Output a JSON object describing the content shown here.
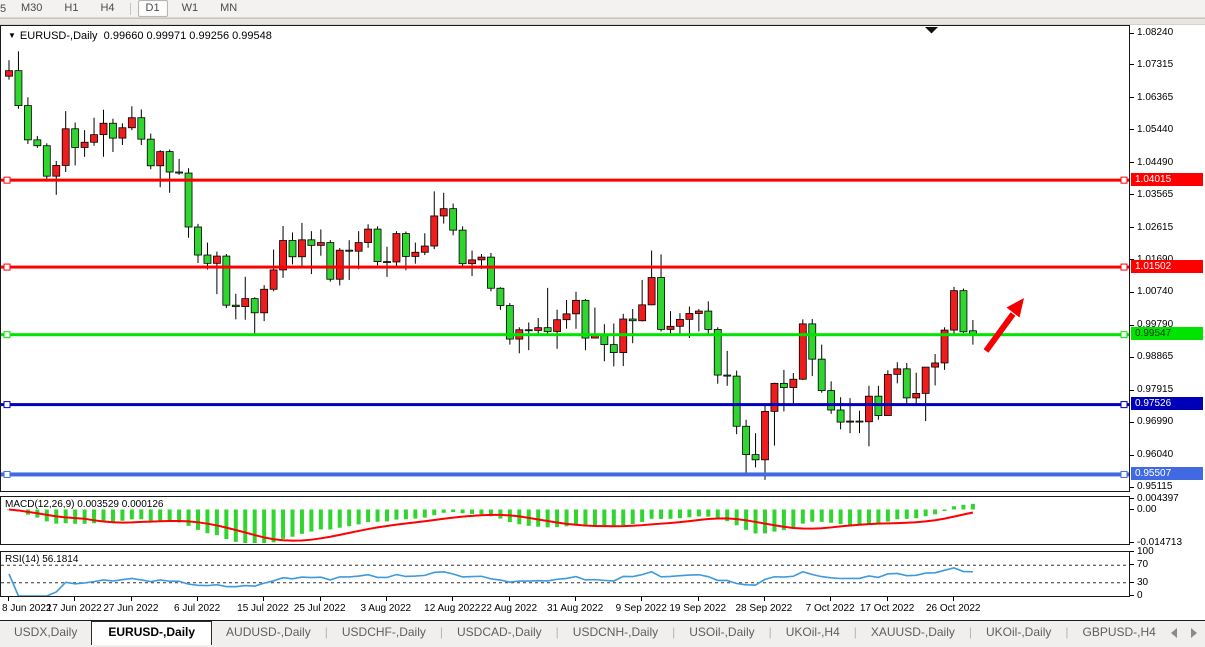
{
  "toolbar": {
    "clipped_left_label": "5",
    "timeframes": [
      "M30",
      "H1",
      "H4",
      "D1",
      "W1",
      "MN"
    ],
    "active_timeframe": "D1"
  },
  "chart_header": {
    "collapse_icon": "down-triangle",
    "symbol": "EURUSD-,Daily",
    "ohlc_text": "0.99660 0.99971 0.99256 0.99548"
  },
  "chart_data": {
    "type": "candlestick",
    "symbol": "EURUSD",
    "timeframe": "Daily",
    "colors": {
      "bull_body": "#ee1c1c",
      "bear_body": "#30d530",
      "candle_outline": "#000000",
      "wick": "#000000",
      "macd_histogram": "#30d530",
      "macd_signal": "#ff0000",
      "rsi_line": "#3e9ade",
      "arrow_annotation": "#f40000"
    },
    "price_axis": {
      "ticks": [
        "1.08240",
        "1.07315",
        "1.06365",
        "1.05440",
        "1.04490",
        "1.03565",
        "1.02615",
        "1.01690",
        "1.00740",
        "0.99790",
        "0.98865",
        "0.97915",
        "0.96990",
        "0.96040",
        "0.95115"
      ],
      "tick_values": [
        1.0824,
        1.07315,
        1.06365,
        1.0544,
        1.0449,
        1.03565,
        1.02615,
        1.0169,
        1.0074,
        0.9979,
        0.98865,
        0.97915,
        0.9699,
        0.9604,
        0.95115
      ],
      "max": 1.0824,
      "min": 0.95115
    },
    "level_lines": [
      {
        "price": 1.04015,
        "label": "1.04015",
        "color": "#ff0000",
        "label_bg": "#ff0000",
        "label_fg": "#ffffff",
        "thickness": 3
      },
      {
        "price": 1.01502,
        "label": "1.01502",
        "color": "#ff0000",
        "label_bg": "#ff0000",
        "label_fg": "#ffffff",
        "thickness": 3
      },
      {
        "price": 0.99547,
        "label": "0.99547",
        "color": "#00e400",
        "label_bg": "#00e400",
        "label_fg": "#003300",
        "thickness": 3
      },
      {
        "price": 0.97526,
        "label": "0.97526",
        "color": "#0000b8",
        "label_bg": "#0000b8",
        "label_fg": "#ffffff",
        "thickness": 3
      },
      {
        "price": 0.95507,
        "label": "0.95507",
        "color": "#4169e1",
        "label_bg": "#4169e1",
        "label_fg": "#ffffff",
        "thickness": 4
      }
    ],
    "x_ticks": [
      {
        "index": 0,
        "label": "8 Jun 2022"
      },
      {
        "index": 7,
        "label": "17 Jun 2022"
      },
      {
        "index": 13,
        "label": "27 Jun 2022"
      },
      {
        "index": 20,
        "label": "6 Jul 2022"
      },
      {
        "index": 27,
        "label": "15 Jul 2022"
      },
      {
        "index": 33,
        "label": "25 Jul 2022"
      },
      {
        "index": 40,
        "label": "3 Aug 2022"
      },
      {
        "index": 47,
        "label": "12 Aug 2022"
      },
      {
        "index": 53,
        "label": "22 Aug 2022"
      },
      {
        "index": 60,
        "label": "31 Aug 2022"
      },
      {
        "index": 67,
        "label": "9 Sep 2022"
      },
      {
        "index": 73,
        "label": "19 Sep 2022"
      },
      {
        "index": 80,
        "label": "28 Sep 2022"
      },
      {
        "index": 87,
        "label": "7 Oct 2022"
      },
      {
        "index": 93,
        "label": "17 Oct 2022"
      },
      {
        "index": 100,
        "label": "26 Oct 2022"
      }
    ],
    "candles_ohlc": [
      [
        1.0702,
        1.0748,
        1.0692,
        1.0718
      ],
      [
        1.0718,
        1.0774,
        1.0608,
        1.0617
      ],
      [
        1.0617,
        1.0641,
        1.0506,
        1.0518
      ],
      [
        1.0518,
        1.0529,
        1.0495,
        1.0501
      ],
      [
        1.0501,
        1.0508,
        1.0397,
        1.0413
      ],
      [
        1.0413,
        1.0457,
        1.0359,
        1.0444
      ],
      [
        1.0444,
        1.0601,
        1.0425,
        1.055
      ],
      [
        1.055,
        1.0568,
        1.0444,
        1.0496
      ],
      [
        1.0496,
        1.0546,
        1.0469,
        1.0511
      ],
      [
        1.0511,
        1.0582,
        1.0501,
        1.0533
      ],
      [
        1.0533,
        1.0605,
        1.0469,
        1.0566
      ],
      [
        1.0566,
        1.0579,
        1.0483,
        1.0523
      ],
      [
        1.0523,
        1.0566,
        1.0503,
        1.0553
      ],
      [
        1.0553,
        1.0615,
        1.0546,
        1.0582
      ],
      [
        1.0582,
        1.0606,
        1.0503,
        1.052
      ],
      [
        1.052,
        1.0536,
        1.0433,
        1.0443
      ],
      [
        1.0443,
        1.0488,
        1.0381,
        1.0484
      ],
      [
        1.0484,
        1.049,
        1.0365,
        1.0425
      ],
      [
        1.0425,
        1.0463,
        1.0417,
        1.0422
      ],
      [
        1.0422,
        1.0436,
        1.0235,
        1.0266
      ],
      [
        1.0266,
        1.0275,
        1.0162,
        1.0185
      ],
      [
        1.0185,
        1.0221,
        1.0143,
        1.0161
      ],
      [
        1.0161,
        1.0195,
        1.0072,
        1.0182
      ],
      [
        1.0182,
        1.0188,
        1.0032,
        1.004
      ],
      [
        1.004,
        1.0073,
        0.9999,
        1.0036
      ],
      [
        1.0036,
        1.0122,
        0.9998,
        1.0059
      ],
      [
        1.0059,
        1.0063,
        0.9952,
        1.0018
      ],
      [
        1.0018,
        1.0098,
        0.9994,
        1.0086
      ],
      [
        1.0086,
        1.0201,
        1.008,
        1.0142
      ],
      [
        1.0142,
        1.0269,
        1.0119,
        1.0227
      ],
      [
        1.0227,
        1.025,
        1.0158,
        1.018
      ],
      [
        1.018,
        1.0278,
        1.0152,
        1.0229
      ],
      [
        1.0229,
        1.0254,
        1.013,
        1.0213
      ],
      [
        1.0213,
        1.0259,
        1.0183,
        1.0221
      ],
      [
        1.0221,
        1.0228,
        1.0108,
        1.0115
      ],
      [
        1.0115,
        1.0205,
        1.0097,
        1.0199
      ],
      [
        1.0199,
        1.0228,
        1.0113,
        1.0196
      ],
      [
        1.0196,
        1.0254,
        1.0144,
        1.0221
      ],
      [
        1.0221,
        1.0274,
        1.0206,
        1.026
      ],
      [
        1.026,
        1.0268,
        1.0155,
        1.0166
      ],
      [
        1.0166,
        1.0209,
        1.0122,
        1.0165
      ],
      [
        1.0165,
        1.0254,
        1.0151,
        1.0247
      ],
      [
        1.0247,
        1.0253,
        1.0141,
        1.0181
      ],
      [
        1.0181,
        1.0221,
        1.016,
        1.0193
      ],
      [
        1.0193,
        1.0248,
        1.0185,
        1.0211
      ],
      [
        1.0211,
        1.0369,
        1.0202,
        1.0298
      ],
      [
        1.0298,
        1.0365,
        1.0276,
        1.0319
      ],
      [
        1.0319,
        1.0334,
        1.0242,
        1.0257
      ],
      [
        1.0257,
        1.0268,
        1.0152,
        1.016
      ],
      [
        1.016,
        1.0198,
        1.0124,
        1.0171
      ],
      [
        1.0171,
        1.0188,
        1.0145,
        1.0179
      ],
      [
        1.0179,
        1.0191,
        1.008,
        1.0089
      ],
      [
        1.0089,
        1.0092,
        1.0026,
        1.0039
      ],
      [
        1.0039,
        1.0046,
        0.9926,
        0.9942
      ],
      [
        0.9942,
        0.9976,
        0.9901,
        0.9969
      ],
      [
        0.9969,
        0.999,
        0.991,
        0.9967
      ],
      [
        0.9967,
        1.0003,
        0.9956,
        0.9975
      ],
      [
        0.9975,
        1.009,
        0.9957,
        0.9964
      ],
      [
        0.9964,
        1.0027,
        0.9914,
        0.9998
      ],
      [
        0.9998,
        1.0055,
        0.9972,
        1.0015
      ],
      [
        1.0015,
        1.0079,
        0.9972,
        1.0054
      ],
      [
        1.0054,
        1.0058,
        0.991,
        0.9945
      ],
      [
        0.9945,
        1.0033,
        0.9944,
        0.9952
      ],
      [
        0.9952,
        0.9985,
        0.9878,
        0.9926
      ],
      [
        0.9926,
        0.9987,
        0.9863,
        0.9903
      ],
      [
        0.9903,
        1.0015,
        0.9864,
        1.0
      ],
      [
        1.0,
        1.0029,
        0.993,
        0.9995
      ],
      [
        0.9995,
        1.0113,
        0.9993,
        1.0041
      ],
      [
        1.0041,
        1.0198,
        1.004,
        1.012
      ],
      [
        1.012,
        1.0187,
        0.9964,
        0.997
      ],
      [
        0.997,
        1.0023,
        0.9955,
        0.9979
      ],
      [
        0.9979,
        1.0017,
        0.9954,
        0.9999
      ],
      [
        0.9999,
        1.0036,
        0.9945,
        1.0016
      ],
      [
        1.0016,
        1.0029,
        0.9964,
        1.0023
      ],
      [
        1.0023,
        1.0051,
        0.9955,
        0.997
      ],
      [
        0.997,
        0.9976,
        0.9813,
        0.9838
      ],
      [
        0.9838,
        0.9908,
        0.9807,
        0.9835
      ],
      [
        0.9835,
        0.9851,
        0.9667,
        0.969
      ],
      [
        0.969,
        0.9709,
        0.9554,
        0.9608
      ],
      [
        0.9608,
        0.967,
        0.9571,
        0.9593
      ],
      [
        0.9593,
        0.975,
        0.9535,
        0.9733
      ],
      [
        0.9733,
        0.9816,
        0.9634,
        0.9814
      ],
      [
        0.9814,
        0.9853,
        0.9733,
        0.9802
      ],
      [
        0.9802,
        0.9844,
        0.9751,
        0.9826
      ],
      [
        0.9826,
        0.9999,
        0.9824,
        0.9986
      ],
      [
        0.9986,
        1.0,
        0.9835,
        0.9884
      ],
      [
        0.9884,
        0.9926,
        0.9787,
        0.9793
      ],
      [
        0.9793,
        0.982,
        0.9726,
        0.9737
      ],
      [
        0.9737,
        0.9774,
        0.9681,
        0.9702
      ],
      [
        0.9702,
        0.9771,
        0.967,
        0.9705
      ],
      [
        0.9705,
        0.9735,
        0.967,
        0.9703
      ],
      [
        0.9703,
        0.9807,
        0.9632,
        0.9777
      ],
      [
        0.9777,
        0.9807,
        0.9709,
        0.9721
      ],
      [
        0.9721,
        0.9852,
        0.972,
        0.984
      ],
      [
        0.984,
        0.9875,
        0.9814,
        0.9856
      ],
      [
        0.9856,
        0.9873,
        0.9755,
        0.9772
      ],
      [
        0.9772,
        0.9845,
        0.9756,
        0.9785
      ],
      [
        0.9785,
        0.986,
        0.9705,
        0.9861
      ],
      [
        0.9861,
        0.9899,
        0.9808,
        0.9873
      ],
      [
        0.9873,
        0.9976,
        0.9853,
        0.9968
      ],
      [
        0.9968,
        1.0093,
        0.9952,
        1.0082
      ],
      [
        1.0082,
        1.0088,
        0.9959,
        0.9963
      ],
      [
        0.9966,
        0.9997,
        0.9926,
        0.9955
      ]
    ],
    "annotations": {
      "trend_arrow": {
        "direction": "up-right",
        "color": "#f40000"
      },
      "shift_marker": "down-triangle"
    },
    "indicators": [
      {
        "name": "MACD",
        "label": "MACD(12,26,9) 0.003529 0.000126",
        "params": [
          12,
          26,
          9
        ],
        "values": [
          0.003529,
          0.000126
        ],
        "axis_labels": [
          {
            "text": "0.004397",
            "value": 0.004397
          },
          {
            "text": "0.00",
            "value": 0.0
          },
          {
            "text": "-0.014713",
            "value": -0.014713
          }
        ]
      },
      {
        "name": "RSI",
        "label": "RSI(14) 56.1814",
        "params": [
          14
        ],
        "value": 56.1814,
        "axis_labels": [
          {
            "text": "100",
            "value": 100
          },
          {
            "text": "70",
            "value": 70
          },
          {
            "text": "30",
            "value": 30
          },
          {
            "text": "0",
            "value": 0
          }
        ],
        "dashed_levels": [
          70,
          30
        ]
      }
    ]
  },
  "tabs": {
    "items": [
      {
        "label": "USDX,Daily",
        "active": false
      },
      {
        "label": "EURUSD-,Daily",
        "active": true
      },
      {
        "label": "AUDUSD-,Daily",
        "active": false
      },
      {
        "label": "USDCHF-,Daily",
        "active": false
      },
      {
        "label": "USDCAD-,Daily",
        "active": false
      },
      {
        "label": "USDCNH-,Daily",
        "active": false
      },
      {
        "label": "USOil-,Daily",
        "active": false
      },
      {
        "label": "UKOil-,H4",
        "active": false
      },
      {
        "label": "XAUUSD-,Daily",
        "active": false
      },
      {
        "label": "UKOil-,Daily",
        "active": false
      },
      {
        "label": "GBPUSD-,H4",
        "active": false
      }
    ]
  }
}
